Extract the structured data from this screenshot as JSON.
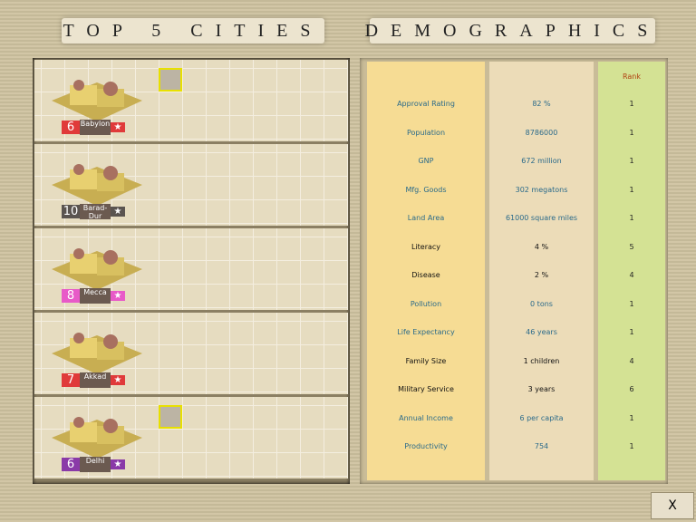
{
  "titles": {
    "left": "TOP 5 CITIES",
    "right": "DEMOGRAPHICS"
  },
  "cities": [
    {
      "name": "Babylon",
      "size": "6",
      "color": "#e03a3a",
      "has_building": true
    },
    {
      "name": "Barad-Dur",
      "size": "10",
      "color": "#5a5450",
      "has_building": false
    },
    {
      "name": "Mecca",
      "size": "8",
      "color": "#e85ac8",
      "has_building": false
    },
    {
      "name": "Akkad",
      "size": "7",
      "color": "#e03a3a",
      "has_building": false
    },
    {
      "name": "Delhi",
      "size": "6",
      "color": "#8a3aa8",
      "has_building": true
    }
  ],
  "demographics": {
    "rank_header": "Rank",
    "rows": [
      {
        "label": "Approval Rating",
        "value": "82 %",
        "rank": "1"
      },
      {
        "label": "Population",
        "value": "8786000",
        "rank": "1"
      },
      {
        "label": "GNP",
        "value": "672 million",
        "rank": "1"
      },
      {
        "label": "Mfg. Goods",
        "value": "302 megatons",
        "rank": "1"
      },
      {
        "label": "Land Area",
        "value": "61000 square miles",
        "rank": "1"
      },
      {
        "label": "Literacy",
        "value": "4 %",
        "rank": "5"
      },
      {
        "label": "Disease",
        "value": "2 %",
        "rank": "4"
      },
      {
        "label": "Pollution",
        "value": "0 tons",
        "rank": "1"
      },
      {
        "label": "Life Expectancy",
        "value": "46 years",
        "rank": "1"
      },
      {
        "label": "Family Size",
        "value": "1 children",
        "rank": "4"
      },
      {
        "label": "Military Service",
        "value": "3 years",
        "rank": "6"
      },
      {
        "label": "Annual Income",
        "value": "6 per capita",
        "rank": "1"
      },
      {
        "label": "Productivity",
        "value": "754",
        "rank": "1"
      }
    ]
  },
  "close_label": "X"
}
